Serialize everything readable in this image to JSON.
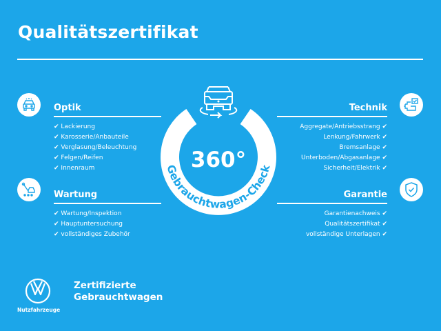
{
  "title": "Qualitätszertifikat",
  "colors": {
    "background": "#1ca6e9",
    "foreground": "#ffffff"
  },
  "check_mark": "✔",
  "left": [
    {
      "heading": "Optik",
      "icon": "car-front-icon",
      "items": [
        "Lackierung",
        "Karosserie/Anbauteile",
        "Verglasung/Beleuchtung",
        "Felgen/Reifen",
        "Innenraum"
      ]
    },
    {
      "heading": "Wartung",
      "icon": "wrench-car-icon",
      "items": [
        "Wartung/Inspektion",
        "Hauptuntersuchung",
        "vollständiges Zubehör"
      ]
    }
  ],
  "right": [
    {
      "heading": "Technik",
      "icon": "engine-check-icon",
      "items": [
        "Aggregate/Antriebsstrang",
        "Lenkung/Fahrwerk",
        "Bremsanlage",
        "Unterboden/Abgasanlage",
        "Sicherheit/Elektrik"
      ]
    },
    {
      "heading": "Garantie",
      "icon": "shield-check-icon",
      "items": [
        "Garantienachweis",
        "Qualitätszertifikat",
        "vollständige Unterlagen"
      ]
    }
  ],
  "badge": {
    "value": "360°",
    "ring_text": "Gebrauchtwagen-Check",
    "icon": "car-rotate-icon"
  },
  "footer": {
    "logo": "VW",
    "logo_sub": "Nutzfahrzeuge",
    "line1": "Zertifizierte",
    "line2": "Gebrauchtwagen"
  }
}
